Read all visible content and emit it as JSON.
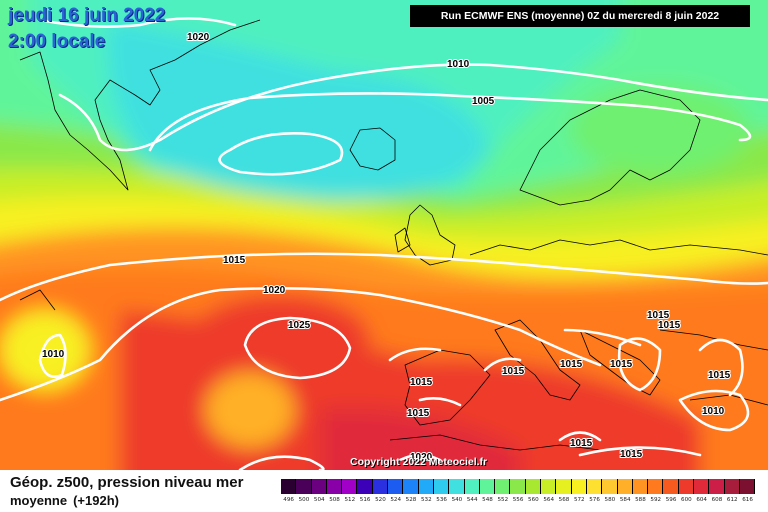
{
  "header": {
    "date": "jeudi 16 juin 2022",
    "time": "2:00 locale",
    "run": "Run ECMWF ENS (moyenne) 0Z du mercredi 8 juin 2022"
  },
  "footer": {
    "title": "Géop. z500, pression niveau mer",
    "subtitle": "moyenne",
    "hours": "(+192h)",
    "copyright": "Copyright 2022 Meteociel.fr"
  },
  "legend": {
    "values": [
      "496",
      "500",
      "504",
      "508",
      "512",
      "516",
      "520",
      "524",
      "528",
      "532",
      "536",
      "540",
      "544",
      "548",
      "552",
      "556",
      "560",
      "564",
      "568",
      "572",
      "576",
      "580",
      "584",
      "588",
      "592",
      "596",
      "600",
      "604",
      "608",
      "612",
      "616"
    ],
    "colors": [
      "#2a0030",
      "#4a0058",
      "#6a0080",
      "#8a00a8",
      "#a000c8",
      "#3c00b8",
      "#2a30e0",
      "#1c5cf0",
      "#1c84f8",
      "#20aaf8",
      "#30ccf0",
      "#40e0e0",
      "#50f0c0",
      "#60f49a",
      "#70f070",
      "#8ae84a",
      "#a8e830",
      "#c8ee28",
      "#e6f020",
      "#f8f020",
      "#fde030",
      "#ffc830",
      "#ffb028",
      "#ff9422",
      "#ff7a1e",
      "#f65a1e",
      "#ee3a2a",
      "#e02a3a",
      "#cc1e46",
      "#a81c3c",
      "#7c1030"
    ]
  },
  "pressure_labels": [
    "1020",
    "1010",
    "1005",
    "1015",
    "1020",
    "1025",
    "1010",
    "1015",
    "1015",
    "1015",
    "1015",
    "1015",
    "1015",
    "1015",
    "1015",
    "1010",
    "1015",
    "1015",
    "1020"
  ]
}
